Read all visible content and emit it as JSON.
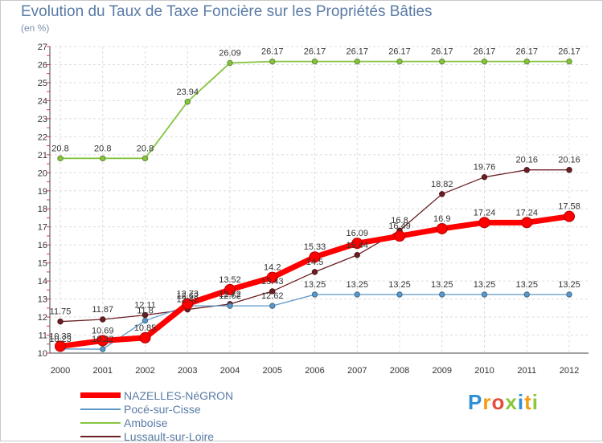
{
  "title": "Evolution du Taux de Taxe Foncière sur les Propriétés Bâties",
  "unit": "(en %)",
  "logo": {
    "text": "Proxiti",
    "letters": [
      "P",
      "r",
      "o",
      "x",
      "i",
      "t",
      "i"
    ],
    "colors": [
      "#2f8fd6",
      "#f39c12",
      "#e74c3c",
      "#8cc63f",
      "#2f8fd6",
      "#f39c12",
      "#8cc63f"
    ]
  },
  "chart_data": {
    "type": "line",
    "title": "Evolution du Taux de Taxe Foncière sur les Propriétés Bâties",
    "ylabel": "(en %)",
    "xlabel": "",
    "x": [
      "2000",
      "2001",
      "2002",
      "2003",
      "2004",
      "2005",
      "2006",
      "2007",
      "2008",
      "2009",
      "2010",
      "2011",
      "2012"
    ],
    "ylim": [
      10,
      27
    ],
    "yticks": [
      10,
      11,
      12,
      13,
      14,
      15,
      16,
      17,
      18,
      19,
      20,
      21,
      22,
      23,
      24,
      25,
      26,
      27
    ],
    "grid": true,
    "legend": "bottom-left",
    "series": [
      {
        "name": "Lussault-sur-Loire",
        "color": "#6b1f24",
        "width": 1.3,
        "marker": 3.2,
        "values": [
          11.75,
          11.87,
          12.11,
          12.42,
          12.72,
          13.43,
          14.5,
          15.44,
          16.8,
          18.82,
          19.76,
          20.16,
          20.16
        ],
        "labels": [
          "11.75",
          "11.87",
          "12.11",
          "12.42",
          "12.72",
          "13.43",
          "14.5",
          "15.44",
          "16.8",
          "18.82",
          "19.76",
          "20.16",
          "20.16"
        ]
      },
      {
        "name": "Amboise",
        "color": "#86c440",
        "width": 1.8,
        "marker": 3.2,
        "values": [
          20.8,
          20.8,
          20.8,
          23.94,
          26.09,
          26.17,
          26.17,
          26.17,
          26.17,
          26.17,
          26.17,
          26.17,
          26.17
        ],
        "labels": [
          "20.8",
          "20.8",
          "20.8",
          "23.94",
          "26.09",
          "26.17",
          "26.17",
          "26.17",
          "26.17",
          "26.17",
          "26.17",
          "26.17",
          "26.17"
        ]
      },
      {
        "name": "Pocé-sur-Cisse",
        "color": "#5b97c9",
        "width": 1.3,
        "marker": 3.2,
        "values": [
          10.23,
          10.22,
          11.8,
          12.62,
          12.62,
          12.62,
          13.25,
          13.25,
          13.25,
          13.25,
          13.25,
          13.25,
          13.25
        ],
        "labels": [
          "10.23",
          "10.22",
          "11.8",
          "12.62",
          "12.62",
          "12.62",
          "13.25",
          "13.25",
          "13.25",
          "13.25",
          "13.25",
          "13.25",
          "13.25"
        ]
      },
      {
        "name": "NAZELLES-NéGRON",
        "color": "#ff0000",
        "width": 7,
        "marker": 6.5,
        "values": [
          10.38,
          10.69,
          10.85,
          12.73,
          13.52,
          14.2,
          15.33,
          16.09,
          16.49,
          16.9,
          17.24,
          17.24,
          17.58
        ],
        "labels": [
          "10.38",
          "10.69",
          "10.85",
          "12.73",
          "13.52",
          "14.2",
          "15.33",
          "16.09",
          "16.49",
          "16.9",
          "17.24",
          "17.24",
          "17.58"
        ]
      }
    ],
    "legend_order": [
      "NAZELLES-NéGRON",
      "Pocé-sur-Cisse",
      "Amboise",
      "Lussault-sur-Loire"
    ]
  }
}
